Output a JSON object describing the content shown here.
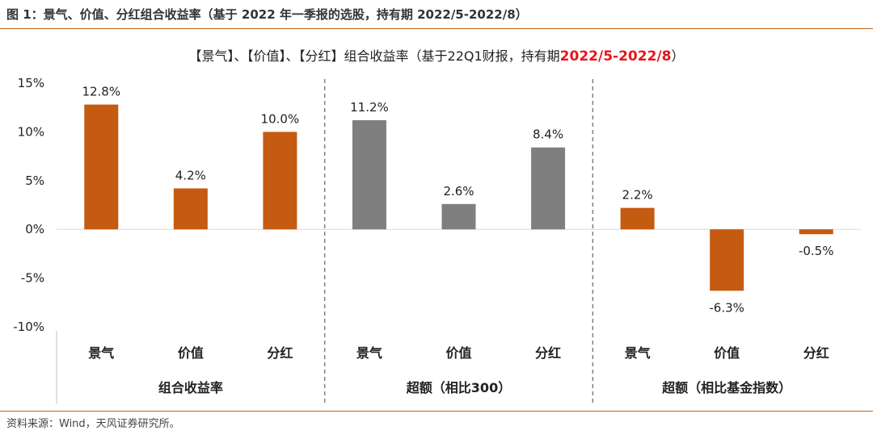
{
  "figure": {
    "title": "图 1：景气、价值、分红组合收益率（基于 2022 年一季报的选股，持有期 2022/5-2022/8）",
    "source": "资料来源：Wind，天风证券研究所。"
  },
  "colors": {
    "orange": "#c55a11",
    "gray": "#7f7f7f",
    "rule": "#c8651a"
  },
  "chart_data": {
    "type": "bar",
    "title_prefix": "【景气】、【价值】、【分红】组合收益率（基于22Q1财报，持有期",
    "title_highlight": "2022/5-2022/8",
    "title_suffix": "）",
    "ylim": [
      -10,
      15
    ],
    "yticks": [
      15,
      10,
      5,
      0,
      -5,
      -10
    ],
    "ytick_labels": [
      "15%",
      "10%",
      "5%",
      "0%",
      "-5%",
      "-10%"
    ],
    "grid": false,
    "groups": [
      {
        "name": "组合收益率",
        "color": "#c55a11",
        "categories": [
          "景气",
          "价值",
          "分红"
        ],
        "values": [
          12.8,
          4.2,
          10.0
        ],
        "labels": [
          "12.8%",
          "4.2%",
          "10.0%"
        ]
      },
      {
        "name": "超额（相比300）",
        "color": "#7f7f7f",
        "categories": [
          "景气",
          "价值",
          "分红"
        ],
        "values": [
          11.2,
          2.6,
          8.4
        ],
        "labels": [
          "11.2%",
          "2.6%",
          "8.4%"
        ]
      },
      {
        "name": "超额（相比基金指数）",
        "color": "#c55a11",
        "categories": [
          "景气",
          "价值",
          "分红"
        ],
        "values": [
          2.2,
          -6.3,
          -0.5
        ],
        "labels": [
          "2.2%",
          "-6.3%",
          "-0.5%"
        ]
      }
    ]
  }
}
